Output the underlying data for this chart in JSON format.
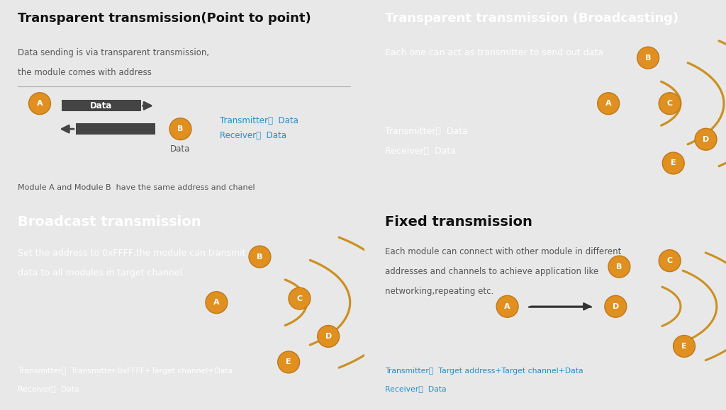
{
  "bg_outer": "#e8e8e8",
  "bg_light": "#deeef8",
  "bg_blue": "#2ba8de",
  "orange_fill": "#e09020",
  "orange_edge": "#c07818",
  "dark_arrow": "#444444",
  "white": "#ffffff",
  "blue_text": "#2090d0",
  "gray_text": "#555555",
  "dark_text": "#111111",
  "panel1": {
    "title": "Transparent transmission(Point to point)",
    "sub1": "Data sending is via transparent transmission,",
    "sub2": "the module comes with address",
    "bottom": "Module A and Module B  have the same address and chanel",
    "tx": "Transmitter：  Data",
    "rx": "Receiver：  Data"
  },
  "panel2": {
    "title": "Transparent transmission (Broadcasting)",
    "sub1": "Each one can act as transmitter to send out data",
    "tx": "Transmitter：  Data",
    "rx": "Receiver：  Data"
  },
  "panel3": {
    "title": "Broadcast transmission",
    "sub1": "Set the address to 0xFFFF,the module can transmit",
    "sub2": "data to all modules in target channel",
    "tx": "Transmitter：  Transmitter:0xFFFF+Target channel+Data",
    "rx": "Receiver：  Data"
  },
  "panel4": {
    "title": "Fixed transmission",
    "sub1": "Each module can connect with other module in different",
    "sub2": "addresses and channels to achieve application like",
    "sub3": "networking,repeating etc.",
    "tx": "Transmitter：  Target address+Target channel+Data",
    "rx": "Receiver：  Data"
  },
  "arc_color": "#cc9020",
  "arc_lw": 2.2
}
